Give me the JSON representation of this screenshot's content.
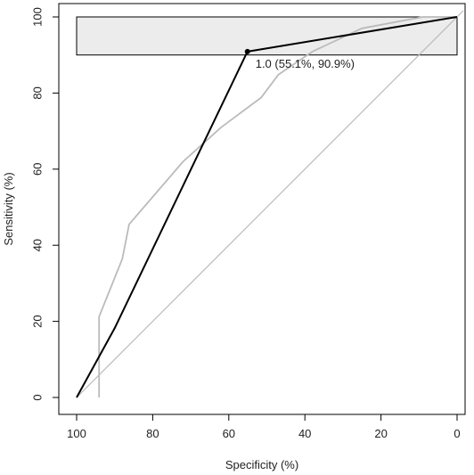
{
  "chart_data": {
    "type": "line",
    "xlabel": "Specificity (%)",
    "ylabel": "Sensitivity (%)",
    "xlim": [
      100,
      0
    ],
    "ylim": [
      0,
      100
    ],
    "x_ticks": [
      100,
      80,
      60,
      40,
      20,
      0
    ],
    "y_ticks": [
      0,
      20,
      40,
      60,
      80,
      100
    ],
    "x_reversed": true,
    "grid": false,
    "series": [
      {
        "color": "#bbbbbb",
        "points": [
          {
            "x": 94.1,
            "y": 0
          },
          {
            "x": 94.1,
            "y": 21.2
          },
          {
            "x": 88,
            "y": 36.4
          },
          {
            "x": 86.2,
            "y": 45.5
          },
          {
            "x": 72,
            "y": 62
          },
          {
            "x": 62,
            "y": 71
          },
          {
            "x": 51.5,
            "y": 78.8
          },
          {
            "x": 47,
            "y": 84.8
          },
          {
            "x": 38,
            "y": 90.9
          },
          {
            "x": 25,
            "y": 97
          },
          {
            "x": 9,
            "y": 100
          },
          {
            "x": 0,
            "y": 100
          }
        ]
      },
      {
        "color": "#000000",
        "points": [
          {
            "x": 100,
            "y": 0
          },
          {
            "x": 90,
            "y": 18.2
          },
          {
            "x": 55.1,
            "y": 90.9
          },
          {
            "x": 0,
            "y": 100
          }
        ]
      }
    ],
    "diagonal": {
      "color": "#bbbbbb",
      "from": {
        "x": 100,
        "y": 0
      },
      "to": {
        "x": 0,
        "y": 100
      }
    },
    "ci_rectangle": {
      "x_from": 100,
      "x_to": 0,
      "y_from": 90,
      "y_to": 100,
      "fill": "#ececec",
      "stroke": "#000000"
    },
    "highlight_point": {
      "x": 55.1,
      "y": 90.9
    },
    "annotation": "1.0 (55.1%, 90.9%)"
  }
}
